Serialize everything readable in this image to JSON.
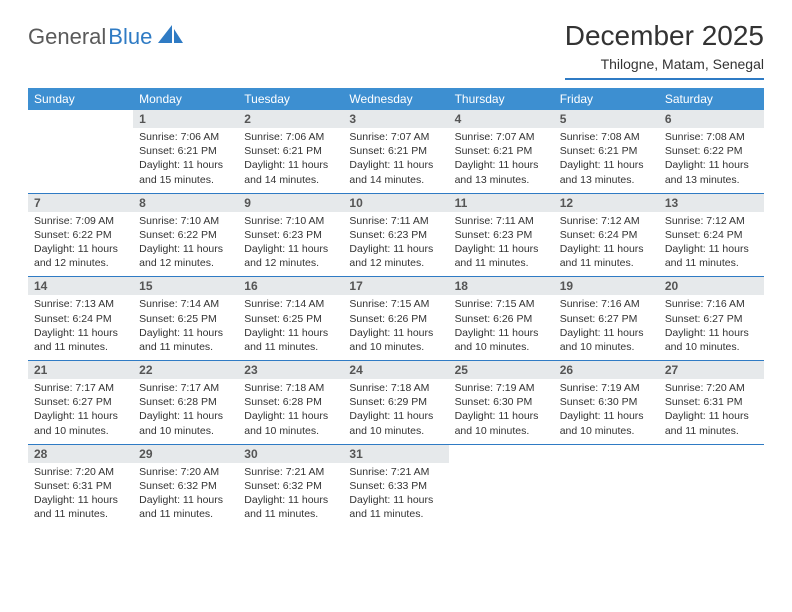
{
  "logo": {
    "text1": "General",
    "text2": "Blue"
  },
  "title": "December 2025",
  "location": "Thilogne, Matam, Senegal",
  "colors": {
    "header_bg": "#3d8fd1",
    "header_text": "#ffffff",
    "daynum_bg": "#e6e9eb",
    "border": "#2f7bc4",
    "logo_gray": "#5a5a5a",
    "logo_blue": "#2f7bc4"
  },
  "weekdays": [
    "Sunday",
    "Monday",
    "Tuesday",
    "Wednesday",
    "Thursday",
    "Friday",
    "Saturday"
  ],
  "weeks": [
    [
      {
        "blank": true
      },
      {
        "n": "1",
        "sr": "Sunrise: 7:06 AM",
        "ss": "Sunset: 6:21 PM",
        "dl": "Daylight: 11 hours and 15 minutes."
      },
      {
        "n": "2",
        "sr": "Sunrise: 7:06 AM",
        "ss": "Sunset: 6:21 PM",
        "dl": "Daylight: 11 hours and 14 minutes."
      },
      {
        "n": "3",
        "sr": "Sunrise: 7:07 AM",
        "ss": "Sunset: 6:21 PM",
        "dl": "Daylight: 11 hours and 14 minutes."
      },
      {
        "n": "4",
        "sr": "Sunrise: 7:07 AM",
        "ss": "Sunset: 6:21 PM",
        "dl": "Daylight: 11 hours and 13 minutes."
      },
      {
        "n": "5",
        "sr": "Sunrise: 7:08 AM",
        "ss": "Sunset: 6:21 PM",
        "dl": "Daylight: 11 hours and 13 minutes."
      },
      {
        "n": "6",
        "sr": "Sunrise: 7:08 AM",
        "ss": "Sunset: 6:22 PM",
        "dl": "Daylight: 11 hours and 13 minutes."
      }
    ],
    [
      {
        "n": "7",
        "sr": "Sunrise: 7:09 AM",
        "ss": "Sunset: 6:22 PM",
        "dl": "Daylight: 11 hours and 12 minutes."
      },
      {
        "n": "8",
        "sr": "Sunrise: 7:10 AM",
        "ss": "Sunset: 6:22 PM",
        "dl": "Daylight: 11 hours and 12 minutes."
      },
      {
        "n": "9",
        "sr": "Sunrise: 7:10 AM",
        "ss": "Sunset: 6:23 PM",
        "dl": "Daylight: 11 hours and 12 minutes."
      },
      {
        "n": "10",
        "sr": "Sunrise: 7:11 AM",
        "ss": "Sunset: 6:23 PM",
        "dl": "Daylight: 11 hours and 12 minutes."
      },
      {
        "n": "11",
        "sr": "Sunrise: 7:11 AM",
        "ss": "Sunset: 6:23 PM",
        "dl": "Daylight: 11 hours and 11 minutes."
      },
      {
        "n": "12",
        "sr": "Sunrise: 7:12 AM",
        "ss": "Sunset: 6:24 PM",
        "dl": "Daylight: 11 hours and 11 minutes."
      },
      {
        "n": "13",
        "sr": "Sunrise: 7:12 AM",
        "ss": "Sunset: 6:24 PM",
        "dl": "Daylight: 11 hours and 11 minutes."
      }
    ],
    [
      {
        "n": "14",
        "sr": "Sunrise: 7:13 AM",
        "ss": "Sunset: 6:24 PM",
        "dl": "Daylight: 11 hours and 11 minutes."
      },
      {
        "n": "15",
        "sr": "Sunrise: 7:14 AM",
        "ss": "Sunset: 6:25 PM",
        "dl": "Daylight: 11 hours and 11 minutes."
      },
      {
        "n": "16",
        "sr": "Sunrise: 7:14 AM",
        "ss": "Sunset: 6:25 PM",
        "dl": "Daylight: 11 hours and 11 minutes."
      },
      {
        "n": "17",
        "sr": "Sunrise: 7:15 AM",
        "ss": "Sunset: 6:26 PM",
        "dl": "Daylight: 11 hours and 10 minutes."
      },
      {
        "n": "18",
        "sr": "Sunrise: 7:15 AM",
        "ss": "Sunset: 6:26 PM",
        "dl": "Daylight: 11 hours and 10 minutes."
      },
      {
        "n": "19",
        "sr": "Sunrise: 7:16 AM",
        "ss": "Sunset: 6:27 PM",
        "dl": "Daylight: 11 hours and 10 minutes."
      },
      {
        "n": "20",
        "sr": "Sunrise: 7:16 AM",
        "ss": "Sunset: 6:27 PM",
        "dl": "Daylight: 11 hours and 10 minutes."
      }
    ],
    [
      {
        "n": "21",
        "sr": "Sunrise: 7:17 AM",
        "ss": "Sunset: 6:27 PM",
        "dl": "Daylight: 11 hours and 10 minutes."
      },
      {
        "n": "22",
        "sr": "Sunrise: 7:17 AM",
        "ss": "Sunset: 6:28 PM",
        "dl": "Daylight: 11 hours and 10 minutes."
      },
      {
        "n": "23",
        "sr": "Sunrise: 7:18 AM",
        "ss": "Sunset: 6:28 PM",
        "dl": "Daylight: 11 hours and 10 minutes."
      },
      {
        "n": "24",
        "sr": "Sunrise: 7:18 AM",
        "ss": "Sunset: 6:29 PM",
        "dl": "Daylight: 11 hours and 10 minutes."
      },
      {
        "n": "25",
        "sr": "Sunrise: 7:19 AM",
        "ss": "Sunset: 6:30 PM",
        "dl": "Daylight: 11 hours and 10 minutes."
      },
      {
        "n": "26",
        "sr": "Sunrise: 7:19 AM",
        "ss": "Sunset: 6:30 PM",
        "dl": "Daylight: 11 hours and 10 minutes."
      },
      {
        "n": "27",
        "sr": "Sunrise: 7:20 AM",
        "ss": "Sunset: 6:31 PM",
        "dl": "Daylight: 11 hours and 11 minutes."
      }
    ],
    [
      {
        "n": "28",
        "sr": "Sunrise: 7:20 AM",
        "ss": "Sunset: 6:31 PM",
        "dl": "Daylight: 11 hours and 11 minutes."
      },
      {
        "n": "29",
        "sr": "Sunrise: 7:20 AM",
        "ss": "Sunset: 6:32 PM",
        "dl": "Daylight: 11 hours and 11 minutes."
      },
      {
        "n": "30",
        "sr": "Sunrise: 7:21 AM",
        "ss": "Sunset: 6:32 PM",
        "dl": "Daylight: 11 hours and 11 minutes."
      },
      {
        "n": "31",
        "sr": "Sunrise: 7:21 AM",
        "ss": "Sunset: 6:33 PM",
        "dl": "Daylight: 11 hours and 11 minutes."
      },
      {
        "blank": true
      },
      {
        "blank": true
      },
      {
        "blank": true
      }
    ]
  ]
}
